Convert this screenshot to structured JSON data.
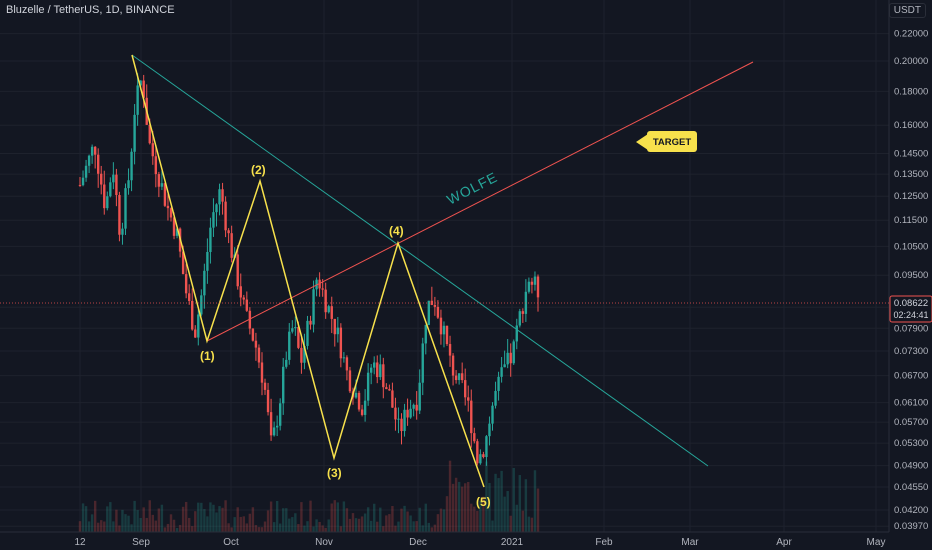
{
  "header": {
    "symbol_title": "Bluzelle / TetherUS, 1D, BINANCE",
    "currency": "USDT"
  },
  "colors": {
    "background": "#131722",
    "grid": "#1e222d",
    "up_candle": "#26a69a",
    "down_candle": "#ef5350",
    "wave_line": "#f7e14c",
    "trend_line": "#26a69a",
    "target_line": "#ef5350",
    "wolfe_text": "#26a69a",
    "target_label_bg": "#f7e14c"
  },
  "chart_data": {
    "type": "candlestick",
    "scale": "log",
    "y_ticks": [
      "0.22000",
      "0.20000",
      "0.18000",
      "0.16000",
      "0.14500",
      "0.13500",
      "0.12500",
      "0.11500",
      "0.10500",
      "0.09500",
      "0.08500",
      "0.07900",
      "0.07300",
      "0.06700",
      "0.06100",
      "0.05700",
      "0.05300",
      "0.04900",
      "0.04550",
      "0.04200",
      "0.03970"
    ],
    "x_ticks": [
      "12",
      "Sep",
      "Oct",
      "Nov",
      "Dec",
      "2021",
      "Feb",
      "Mar",
      "Apr",
      "May"
    ],
    "last_price": "0.08622",
    "countdown": "02:24:41",
    "wolfe_points": [
      {
        "label": "",
        "date": "Aug 31",
        "price": 0.205
      },
      {
        "label": "(1)",
        "date": "Sep 23",
        "price": 0.076
      },
      {
        "label": "(2)",
        "date": "Oct 11",
        "price": 0.131
      },
      {
        "label": "(3)",
        "date": "Nov 4",
        "price": 0.0505
      },
      {
        "label": "(4)",
        "date": "Nov 26",
        "price": 0.106
      },
      {
        "label": "(5)",
        "date": "Dec 20",
        "price": 0.0455
      }
    ],
    "wolfe_label": "WOLFE",
    "target_label": "TARGET"
  }
}
